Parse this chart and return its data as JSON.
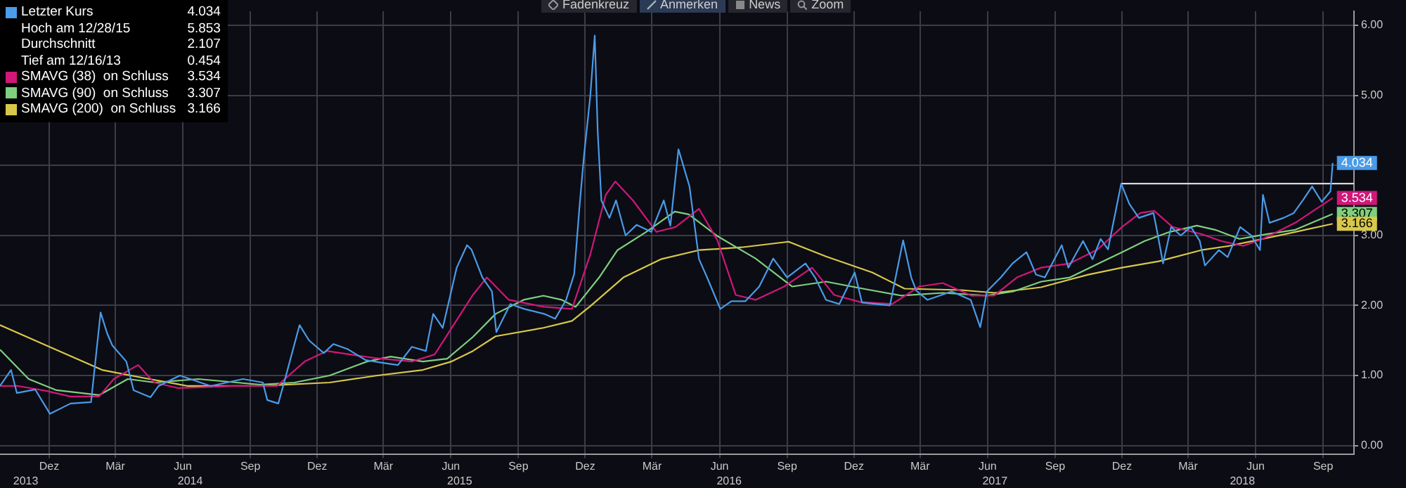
{
  "chart_data": {
    "type": "line",
    "xlim": [
      "2013-10-09",
      "2018-10-27"
    ],
    "ylim": [
      -0.12,
      6.2
    ],
    "xticks": [
      {
        "value": "2013-12-15",
        "label": "Dez"
      },
      {
        "value": "2014-03-15",
        "label": "Mär"
      },
      {
        "value": "2014-06-15",
        "label": "Jun"
      },
      {
        "value": "2014-09-15",
        "label": "Sep"
      },
      {
        "value": "2014-12-15",
        "label": "Dez"
      },
      {
        "value": "2015-03-15",
        "label": "Mär"
      },
      {
        "value": "2015-06-15",
        "label": "Jun"
      },
      {
        "value": "2015-09-15",
        "label": "Sep"
      },
      {
        "value": "2015-12-15",
        "label": "Dez"
      },
      {
        "value": "2016-03-15",
        "label": "Mär"
      },
      {
        "value": "2016-06-15",
        "label": "Jun"
      },
      {
        "value": "2016-09-15",
        "label": "Sep"
      },
      {
        "value": "2016-12-15",
        "label": "Dez"
      },
      {
        "value": "2017-03-15",
        "label": "Mär"
      },
      {
        "value": "2017-06-15",
        "label": "Jun"
      },
      {
        "value": "2017-09-15",
        "label": "Sep"
      },
      {
        "value": "2017-12-15",
        "label": "Dez"
      },
      {
        "value": "2018-03-15",
        "label": "Mär"
      },
      {
        "value": "2018-06-15",
        "label": "Jun"
      },
      {
        "value": "2018-09-15",
        "label": "Sep"
      }
    ],
    "x2lim": [
      "2013-10-09",
      "2018-10-27"
    ],
    "x2ticks": [
      {
        "value": "2013-11-13",
        "label": "2013"
      },
      {
        "value": "2014-06-25",
        "label": "2014"
      },
      {
        "value": "2015-06-27",
        "label": "2015"
      },
      {
        "value": "2016-06-28",
        "label": "2016"
      },
      {
        "value": "2017-06-25",
        "label": "2017"
      },
      {
        "value": "2018-05-28",
        "label": "2018"
      }
    ],
    "yticks": [
      {
        "value": 0,
        "label": "0.00"
      },
      {
        "value": 1,
        "label": "1.00"
      },
      {
        "value": 2,
        "label": "2.00"
      },
      {
        "value": 3,
        "label": "3.00"
      },
      {
        "value": 4,
        "label": null
      },
      {
        "value": 5,
        "label": "5.00"
      },
      {
        "value": 6,
        "label": "6.00"
      }
    ],
    "grid": true,
    "legend": "top left",
    "annotations": [
      "Hoch am 12/28/15",
      "5.853",
      "Durchschnitt",
      "2.107",
      "Tief am 12/16/13",
      "0.454",
      "Fadenkreuz",
      "Anmerken",
      "News",
      "Zoom"
    ],
    "series": [
      {
        "name": "Letzter Kurs",
        "color": "#4a9be8",
        "x": [
          "2013-10-09",
          "2013-10-24",
          "2013-11-01",
          "2013-11-26",
          "2013-12-16",
          "2014-01-13",
          "2014-02-10",
          "2014-02-23",
          "2014-03-04",
          "2014-03-11",
          "2014-03-30",
          "2014-04-09",
          "2014-05-02",
          "2014-05-13",
          "2014-06-11",
          "2014-07-23",
          "2014-09-05",
          "2014-10-02",
          "2014-10-08",
          "2014-10-23",
          "2014-11-02",
          "2014-11-21",
          "2014-12-04",
          "2014-12-24",
          "2015-01-06",
          "2015-01-25",
          "2015-02-19",
          "2015-03-15",
          "2015-04-04",
          "2015-04-23",
          "2015-05-12",
          "2015-05-22",
          "2015-06-04",
          "2015-06-23",
          "2015-07-07",
          "2015-07-13",
          "2015-07-28",
          "2015-08-10",
          "2015-08-16",
          "2015-09-04",
          "2015-09-23",
          "2015-10-20",
          "2015-11-04",
          "2015-11-19",
          "2015-11-30",
          "2015-12-07",
          "2015-12-13",
          "2015-12-22",
          "2015-12-28",
          "2016-01-01",
          "2016-01-06",
          "2016-01-17",
          "2016-01-26",
          "2016-02-08",
          "2016-02-23",
          "2016-03-14",
          "2016-03-31",
          "2016-04-09",
          "2016-04-20",
          "2016-05-05",
          "2016-05-10",
          "2016-05-18",
          "2016-05-29",
          "2016-06-16",
          "2016-07-01",
          "2016-07-20",
          "2016-08-08",
          "2016-08-27",
          "2016-09-15",
          "2016-10-10",
          "2016-10-23",
          "2016-11-07",
          "2016-11-25",
          "2016-12-16",
          "2016-12-26",
          "2017-02-02",
          "2017-02-20",
          "2017-03-03",
          "2017-03-10",
          "2017-03-25",
          "2017-04-27",
          "2017-05-23",
          "2017-06-05",
          "2017-06-14",
          "2017-07-03",
          "2017-07-19",
          "2017-08-07",
          "2017-08-20",
          "2017-09-01",
          "2017-09-24",
          "2017-10-03",
          "2017-10-23",
          "2017-11-05",
          "2017-11-16",
          "2017-11-26",
          "2017-12-14",
          "2017-12-25",
          "2018-01-07",
          "2018-01-27",
          "2018-02-01",
          "2018-02-09",
          "2018-02-20",
          "2018-03-05",
          "2018-03-19",
          "2018-03-31",
          "2018-04-07",
          "2018-04-26",
          "2018-05-08",
          "2018-05-25",
          "2018-06-09",
          "2018-06-21",
          "2018-06-25",
          "2018-07-04",
          "2018-07-23",
          "2018-08-06",
          "2018-08-19",
          "2018-08-31",
          "2018-09-13",
          "2018-09-25",
          "2018-09-28"
        ],
        "values": [
          0.85,
          1.08,
          0.75,
          0.8,
          0.454,
          0.6,
          0.62,
          1.9,
          1.6,
          1.43,
          1.2,
          0.79,
          0.69,
          0.85,
          1.0,
          0.85,
          0.95,
          0.9,
          0.65,
          0.6,
          0.98,
          1.72,
          1.5,
          1.32,
          1.45,
          1.38,
          1.22,
          1.18,
          1.15,
          1.41,
          1.35,
          1.88,
          1.68,
          2.54,
          2.86,
          2.8,
          2.4,
          2.2,
          1.62,
          2.02,
          1.95,
          1.88,
          1.81,
          2.08,
          2.45,
          3.38,
          4.1,
          5.0,
          5.853,
          4.49,
          3.5,
          3.25,
          3.5,
          3.0,
          3.15,
          3.05,
          3.5,
          3.14,
          4.23,
          3.7,
          3.3,
          2.66,
          2.4,
          1.95,
          2.06,
          2.06,
          2.27,
          2.67,
          2.4,
          2.6,
          2.4,
          2.08,
          2.02,
          2.47,
          2.04,
          2.0,
          2.93,
          2.4,
          2.21,
          2.08,
          2.2,
          2.08,
          1.69,
          2.2,
          2.4,
          2.6,
          2.76,
          2.44,
          2.4,
          2.86,
          2.54,
          2.92,
          2.66,
          2.95,
          2.8,
          3.74,
          3.45,
          3.25,
          3.32,
          3.05,
          2.6,
          3.12,
          3.0,
          3.12,
          2.92,
          2.57,
          2.79,
          2.69,
          3.12,
          3.0,
          2.79,
          3.58,
          3.18,
          3.25,
          3.32,
          3.51,
          3.7,
          3.48,
          3.63,
          4.034
        ],
        "value_labels": [
          null,
          null,
          null,
          null,
          null,
          null,
          null,
          null,
          null,
          null,
          null,
          null,
          null,
          null,
          null,
          null,
          null,
          null,
          null,
          null,
          null,
          null,
          null,
          null,
          null,
          null,
          null,
          null,
          null,
          null,
          null,
          null,
          null,
          null,
          null,
          null,
          null,
          null,
          null,
          null,
          null,
          null,
          null,
          null,
          null,
          null,
          null,
          null,
          null,
          null,
          null,
          null,
          null,
          null,
          null,
          null,
          null,
          null,
          null,
          null,
          null,
          null,
          null,
          null,
          null,
          null,
          null,
          null,
          null,
          null,
          null,
          null,
          null,
          null,
          null,
          null,
          null,
          null,
          null,
          null,
          null,
          null,
          null,
          null,
          null,
          null,
          null,
          null,
          null,
          null,
          null,
          null,
          null,
          null,
          null,
          null,
          null,
          null,
          null,
          null,
          null,
          null,
          null,
          null,
          null,
          null,
          null,
          null,
          null,
          null,
          null,
          null,
          null,
          null,
          null,
          null,
          null,
          null,
          null,
          "4.034"
        ]
      },
      {
        "color": "#d8d8d8",
        "x": [
          "2017-12-14",
          "2018-10-27"
        ],
        "values": [
          3.74,
          3.74
        ]
      },
      {
        "name": "SMAVG (38)  on Schluss",
        "color": "#d0177a",
        "x": [
          "2013-10-09",
          "2013-11-03",
          "2013-12-11",
          "2014-01-13",
          "2014-02-21",
          "2014-03-13",
          "2014-04-15",
          "2014-05-07",
          "2014-06-09",
          "2014-08-25",
          "2014-10-21",
          "2014-11-28",
          "2014-12-28",
          "2015-03-03",
          "2015-04-23",
          "2015-05-24",
          "2015-07-15",
          "2015-08-03",
          "2015-09-02",
          "2015-10-20",
          "2015-11-27",
          "2015-12-22",
          "2016-01-12",
          "2016-01-25",
          "2016-02-18",
          "2016-03-21",
          "2016-04-16",
          "2016-05-18",
          "2016-06-12",
          "2016-07-07",
          "2016-08-03",
          "2016-09-11",
          "2016-10-19",
          "2016-11-18",
          "2016-12-23",
          "2017-02-05",
          "2017-03-14",
          "2017-04-15",
          "2017-05-24",
          "2017-06-24",
          "2017-07-25",
          "2017-08-27",
          "2017-10-05",
          "2017-11-12",
          "2017-12-15",
          "2018-01-09",
          "2018-01-28",
          "2018-02-22",
          "2018-04-02",
          "2018-04-29",
          "2018-05-29",
          "2018-06-25",
          "2018-08-08",
          "2018-09-28"
        ],
        "values": [
          0.85,
          0.85,
          0.78,
          0.7,
          0.7,
          0.95,
          1.15,
          0.9,
          0.82,
          0.85,
          0.85,
          1.2,
          1.35,
          1.25,
          1.2,
          1.3,
          2.15,
          2.4,
          2.08,
          1.98,
          1.95,
          2.73,
          3.58,
          3.77,
          3.5,
          3.05,
          3.12,
          3.38,
          2.93,
          2.15,
          2.08,
          2.27,
          2.54,
          2.15,
          2.05,
          2.02,
          2.27,
          2.32,
          2.14,
          2.14,
          2.4,
          2.54,
          2.6,
          2.8,
          3.12,
          3.32,
          3.35,
          3.12,
          3.02,
          2.92,
          2.85,
          2.95,
          3.18,
          3.534
        ],
        "value_labels": [
          null,
          null,
          null,
          null,
          null,
          null,
          null,
          null,
          null,
          null,
          null,
          null,
          null,
          null,
          null,
          null,
          null,
          null,
          null,
          null,
          null,
          null,
          null,
          null,
          null,
          null,
          null,
          null,
          null,
          null,
          null,
          null,
          null,
          null,
          null,
          null,
          null,
          null,
          null,
          null,
          null,
          null,
          null,
          null,
          null,
          null,
          null,
          null,
          null,
          null,
          null,
          null,
          null,
          "3.534"
        ]
      },
      {
        "name": "SMAVG (90)  on Schluss",
        "color": "#7ecf7e",
        "x": [
          "2013-10-09",
          "2013-11-17",
          "2013-12-25",
          "2014-02-21",
          "2014-04-01",
          "2014-05-08",
          "2014-07-06",
          "2014-09-28",
          "2014-11-14",
          "2015-01-01",
          "2015-02-21",
          "2015-03-25",
          "2015-05-08",
          "2015-06-10",
          "2015-07-15",
          "2015-08-15",
          "2015-09-22",
          "2015-10-19",
          "2015-11-13",
          "2015-12-02",
          "2016-01-03",
          "2016-01-28",
          "2016-03-07",
          "2016-04-15",
          "2016-05-04",
          "2016-06-12",
          "2016-08-03",
          "2016-09-22",
          "2016-11-07",
          "2016-12-27",
          "2017-02-18",
          "2017-04-15",
          "2017-06-13",
          "2017-07-20",
          "2017-08-27",
          "2017-10-05",
          "2017-11-19",
          "2017-12-15",
          "2018-01-15",
          "2018-02-18",
          "2018-03-27",
          "2018-04-21",
          "2018-05-24",
          "2018-07-01",
          "2018-08-08",
          "2018-09-28"
        ],
        "values": [
          1.37,
          0.95,
          0.79,
          0.72,
          0.95,
          0.9,
          0.95,
          0.87,
          0.9,
          1.0,
          1.2,
          1.27,
          1.2,
          1.24,
          1.55,
          1.88,
          2.08,
          2.14,
          2.08,
          1.98,
          2.4,
          2.79,
          3.05,
          3.34,
          3.3,
          2.99,
          2.67,
          2.27,
          2.34,
          2.24,
          2.14,
          2.18,
          2.14,
          2.2,
          2.34,
          2.4,
          2.63,
          2.76,
          2.92,
          3.05,
          3.14,
          3.08,
          2.95,
          3.02,
          3.08,
          3.307
        ],
        "value_labels": [
          null,
          null,
          null,
          null,
          null,
          null,
          null,
          null,
          null,
          null,
          null,
          null,
          null,
          null,
          null,
          null,
          null,
          null,
          null,
          null,
          null,
          null,
          null,
          null,
          null,
          null,
          null,
          null,
          null,
          null,
          null,
          null,
          null,
          null,
          null,
          null,
          null,
          null,
          null,
          null,
          null,
          null,
          null,
          null,
          null,
          "3.307"
        ]
      },
      {
        "name": "SMAVG (200)  on Schluss",
        "color": "#d8c84a",
        "x": [
          "2013-10-09",
          "2013-12-11",
          "2014-02-25",
          "2014-04-20",
          "2014-06-22",
          "2014-09-28",
          "2015-01-01",
          "2015-03-07",
          "2015-05-08",
          "2015-06-16",
          "2015-07-15",
          "2015-08-15",
          "2015-10-19",
          "2015-11-27",
          "2015-12-22",
          "2016-02-05",
          "2016-03-27",
          "2016-05-18",
          "2016-07-15",
          "2016-09-17",
          "2016-11-07",
          "2017-01-09",
          "2017-02-22",
          "2017-05-10",
          "2017-06-25",
          "2017-08-27",
          "2017-10-30",
          "2017-12-15",
          "2018-02-03",
          "2018-04-02",
          "2018-05-10",
          "2018-06-25",
          "2018-08-08",
          "2018-09-28"
        ],
        "values": [
          1.72,
          1.43,
          1.08,
          0.97,
          0.85,
          0.85,
          0.9,
          1.0,
          1.08,
          1.2,
          1.35,
          1.56,
          1.68,
          1.78,
          1.99,
          2.4,
          2.66,
          2.79,
          2.83,
          2.91,
          2.7,
          2.47,
          2.24,
          2.22,
          2.18,
          2.26,
          2.44,
          2.54,
          2.63,
          2.79,
          2.85,
          2.95,
          3.05,
          3.166
        ],
        "value_labels": [
          null,
          null,
          null,
          null,
          null,
          null,
          null,
          null,
          null,
          null,
          null,
          null,
          null,
          null,
          null,
          null,
          null,
          null,
          null,
          null,
          null,
          null,
          null,
          null,
          null,
          null,
          null,
          null,
          null,
          null,
          null,
          null,
          null,
          "3.166"
        ]
      }
    ]
  }
}
